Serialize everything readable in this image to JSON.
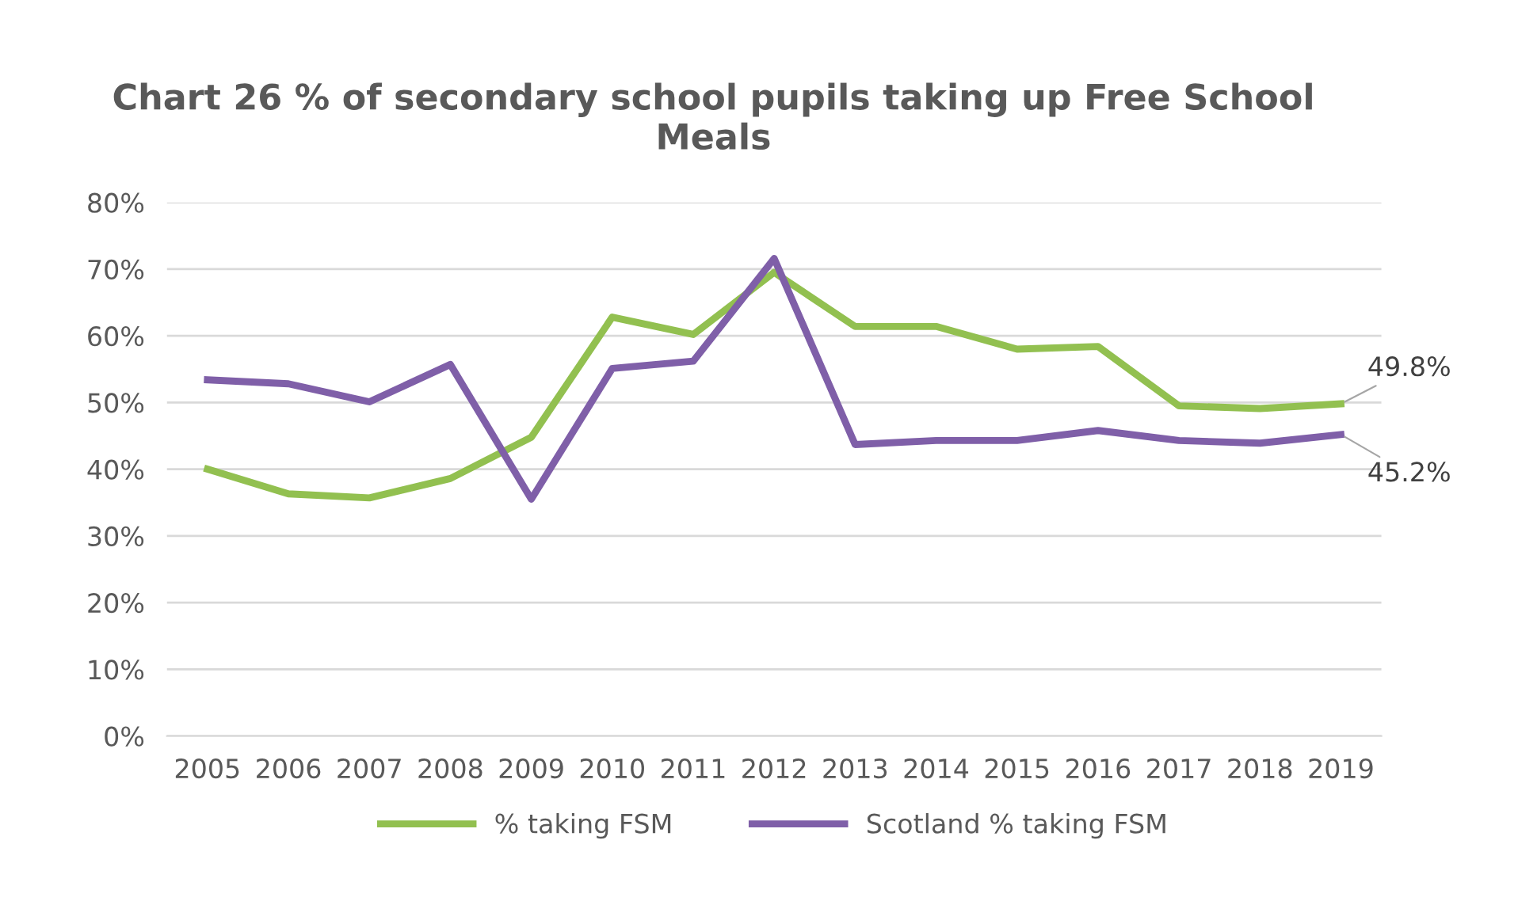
{
  "chart_data": {
    "type": "line",
    "title": "Chart 26 % of secondary school pupils taking up Free School Meals",
    "categories": [
      "2005",
      "2006",
      "2007",
      "2008",
      "2009",
      "2010",
      "2011",
      "2012",
      "2013",
      "2014",
      "2015",
      "2016",
      "2017",
      "2018",
      "2019"
    ],
    "series": [
      {
        "name": "% taking FSM",
        "color": "#92c050",
        "values": [
          40.0,
          36.3,
          35.7,
          38.6,
          44.8,
          62.8,
          60.2,
          69.5,
          61.4,
          61.4,
          58.0,
          58.4,
          49.5,
          49.1,
          49.8
        ],
        "value_labels": [
          null,
          null,
          null,
          null,
          null,
          null,
          null,
          null,
          null,
          null,
          null,
          null,
          null,
          null,
          "49.8%"
        ]
      },
      {
        "name": "Scotland % taking FSM",
        "color": "#7f5fa8",
        "values": [
          53.4,
          52.8,
          50.1,
          55.7,
          35.5,
          55.1,
          56.2,
          71.6,
          43.7,
          44.3,
          44.3,
          45.8,
          44.3,
          43.9,
          45.2
        ],
        "value_labels": [
          null,
          null,
          null,
          null,
          null,
          null,
          null,
          null,
          null,
          null,
          null,
          null,
          null,
          null,
          "45.2%"
        ]
      }
    ],
    "ylim": [
      0,
      80
    ],
    "yticks": [
      {
        "value": 0,
        "label": "0%"
      },
      {
        "value": 10,
        "label": "10%"
      },
      {
        "value": 20,
        "label": "20%"
      },
      {
        "value": 30,
        "label": "30%"
      },
      {
        "value": 40,
        "label": "40%"
      },
      {
        "value": 50,
        "label": "50%"
      },
      {
        "value": 60,
        "label": "60%"
      },
      {
        "value": 70,
        "label": "70%"
      },
      {
        "value": 80,
        "label": "80%"
      }
    ],
    "grid": "y",
    "legend": "bottom",
    "marker": "none",
    "line_style": "solid"
  }
}
